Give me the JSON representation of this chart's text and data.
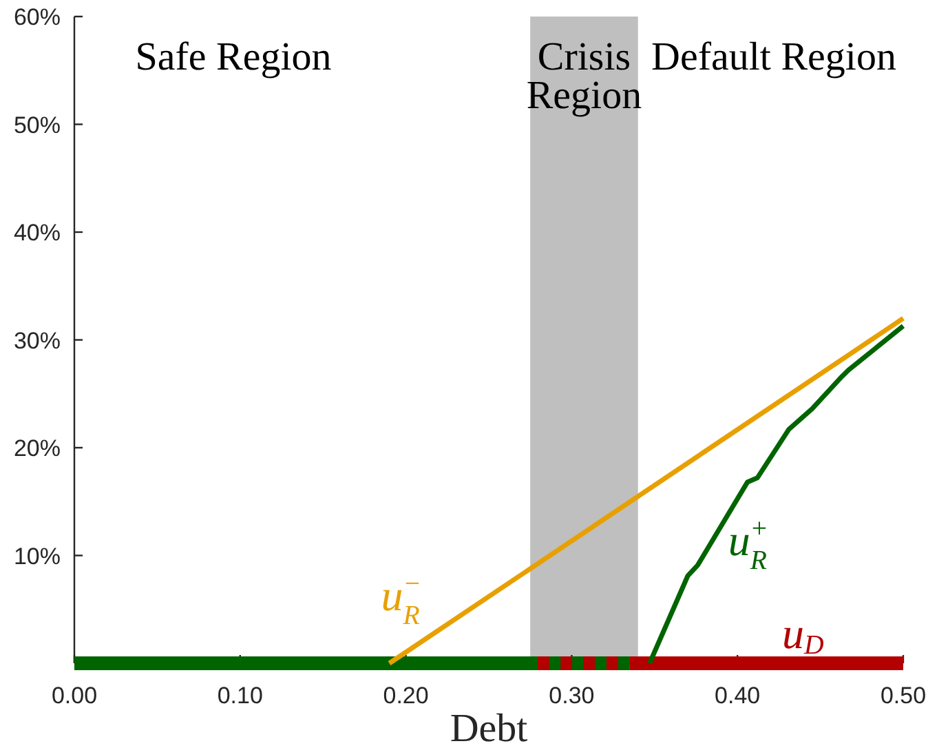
{
  "chart_data": {
    "type": "line",
    "xlabel": "Debt",
    "xlim": [
      0,
      0.5
    ],
    "xticks": [
      {
        "value": 0,
        "label": "0.00"
      },
      {
        "value": 0.1,
        "label": "0.10"
      },
      {
        "value": 0.2,
        "label": "0.20"
      },
      {
        "value": 0.3,
        "label": "0.30"
      },
      {
        "value": 0.4,
        "label": "0.40"
      },
      {
        "value": 0.5,
        "label": "0.50"
      }
    ],
    "ylim": [
      0,
      60
    ],
    "yticks": [
      {
        "value": 10,
        "label": "10%"
      },
      {
        "value": 20,
        "label": "20%"
      },
      {
        "value": 30,
        "label": "30%"
      },
      {
        "value": 40,
        "label": "40%"
      },
      {
        "value": 50,
        "label": "50%"
      },
      {
        "value": 60,
        "label": "60%"
      }
    ],
    "series": [
      {
        "color": "#006400",
        "x": [
          0,
          0.335
        ],
        "values": [
          0,
          0
        ]
      },
      {
        "name": "u$_{D}$",
        "color": "#b30000",
        "x": [
          0.275,
          0.5
        ],
        "values": [
          0,
          0
        ],
        "line_style": "dashed"
      },
      {
        "name": "u$_{R}$$^{−}$",
        "color": "#e8a000",
        "x": [
          0.19,
          0.5
        ],
        "values": [
          0,
          32
        ]
      },
      {
        "name": "u$_{R}$$^{+}$",
        "color": "#006400",
        "x": [
          0.347,
          0.37,
          0.376,
          0.406,
          0.412,
          0.431,
          0.445,
          0.463,
          0.467,
          0.5
        ],
        "values": [
          0,
          8.1,
          9.1,
          16.8,
          17.2,
          21.7,
          23.6,
          26.6,
          27.2,
          31.3
        ]
      }
    ],
    "bands": [
      {
        "axis": "x",
        "from": 0.275,
        "to": 0.34,
        "label": "Crisis Region",
        "color": "#bfbfbf"
      }
    ],
    "annotations": [
      "Safe Region",
      "Default Region"
    ],
    "legend": false,
    "grid": false
  }
}
